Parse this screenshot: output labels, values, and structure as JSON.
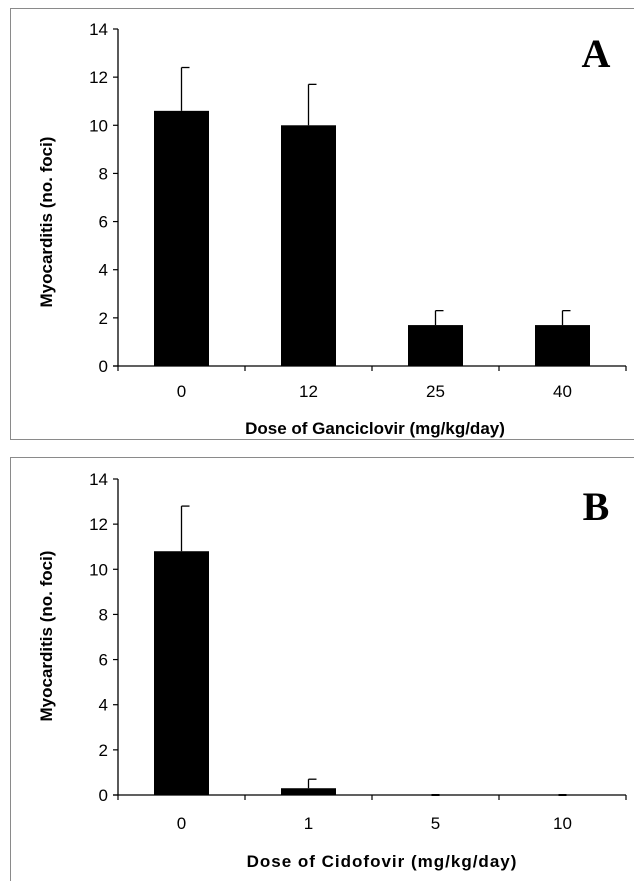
{
  "chart_data": [
    {
      "type": "bar",
      "panel_label": "A",
      "categories": [
        "0",
        "12",
        "25",
        "40"
      ],
      "values": [
        10.6,
        10.0,
        1.7,
        1.7
      ],
      "error_plus": [
        1.8,
        1.7,
        0.6,
        0.6
      ],
      "xlabel": "Dose of Ganciclovir (mg/kg/day)",
      "ylabel": "Myocarditis (no. foci)",
      "ylim": [
        0,
        14
      ],
      "yticks": [
        "0",
        "2",
        "4",
        "6",
        "8",
        "10",
        "12",
        "14"
      ],
      "grid": false,
      "bar_color": "#000000"
    },
    {
      "type": "bar",
      "panel_label": "B",
      "categories": [
        "0",
        "1",
        "5",
        "10"
      ],
      "values": [
        10.8,
        0.3,
        0.0,
        0.0
      ],
      "error_plus": [
        2.0,
        0.4,
        0.0,
        0.0
      ],
      "xlabel": "Dose of Cidofovir (mg/kg/day)",
      "ylabel": "Myocarditis (no. foci)",
      "ylim": [
        0,
        14
      ],
      "yticks": [
        "0",
        "2",
        "4",
        "6",
        "8",
        "10",
        "12",
        "14"
      ],
      "grid": false,
      "bar_color": "#000000"
    }
  ]
}
